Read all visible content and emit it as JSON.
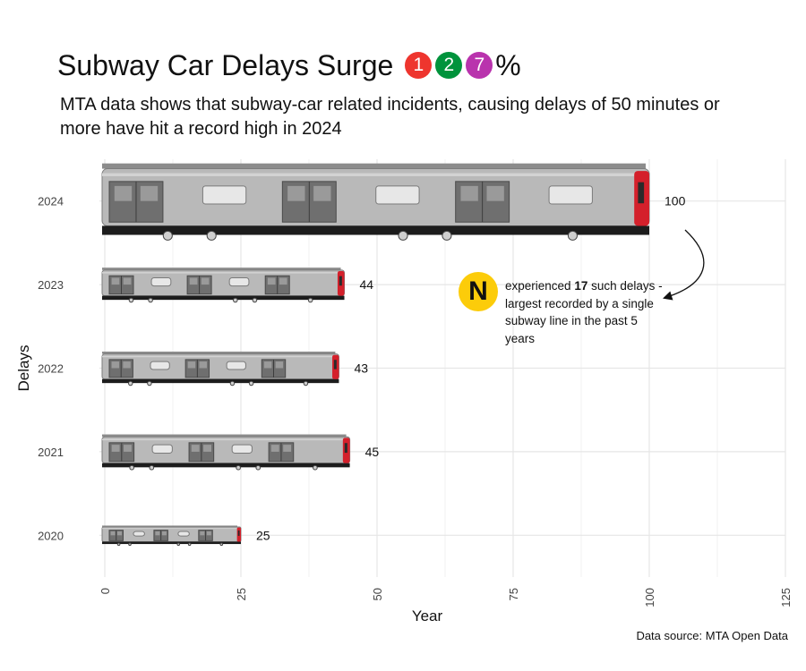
{
  "title": {
    "text": "Subway Car Delays Surge",
    "bullets": [
      {
        "label": "1",
        "color": "#EE352E"
      },
      {
        "label": "2",
        "color": "#00933C"
      },
      {
        "label": "7",
        "color": "#B933AD"
      }
    ],
    "suffix": "%"
  },
  "subtitle": "MTA data shows that subway-car related incidents, causing delays of 50 minutes or more have hit a record high in 2024",
  "annotation": {
    "bullet_label": "N",
    "bullet_color": "#FCCC0A",
    "text_before": "experienced ",
    "highlight": "17",
    "text_after": " such delays - largest recorded by a single subway line in the past 5 years"
  },
  "source": "Data source: MTA Open Data",
  "chart_data": {
    "type": "bar",
    "orientation": "horizontal",
    "categories": [
      "2024",
      "2023",
      "2022",
      "2021",
      "2020"
    ],
    "values": [
      100,
      44,
      43,
      45,
      25
    ],
    "xlabel": "Year",
    "ylabel": "Delays",
    "xlim": [
      0,
      125
    ],
    "xticks": [
      0,
      25,
      50,
      75,
      100,
      125
    ],
    "grid": true,
    "bar_style": "subway-car image"
  }
}
